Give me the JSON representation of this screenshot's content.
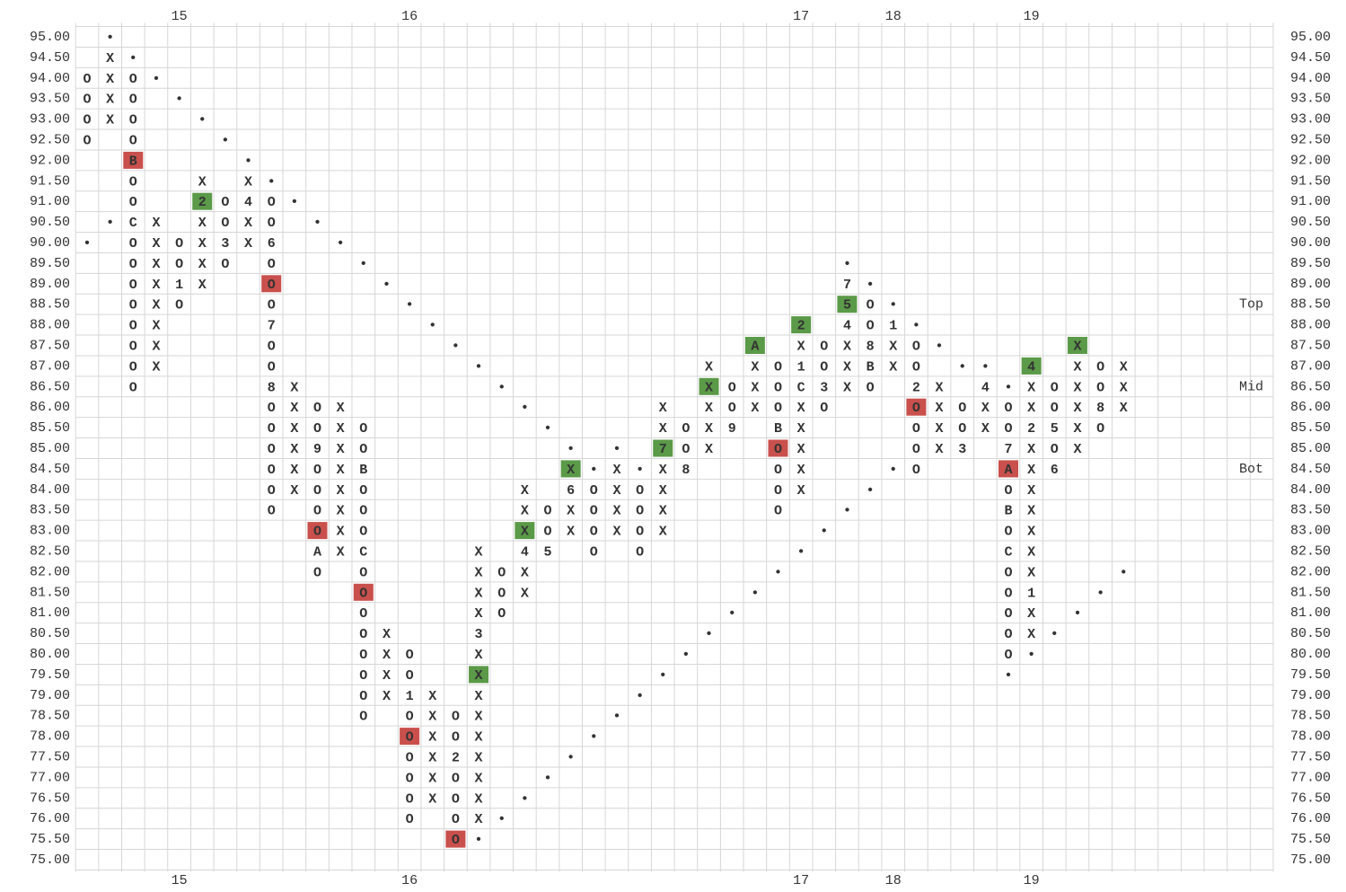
{
  "chart_data": {
    "type": "point_and_figure",
    "ylim": [
      75,
      95
    ],
    "yticks": [
      {
        "value": 95,
        "label": "95.00"
      },
      {
        "value": 94.5,
        "label": "94.50"
      },
      {
        "value": 94,
        "label": "94.00"
      },
      {
        "value": 93.5,
        "label": "93.50"
      },
      {
        "value": 93,
        "label": "93.00"
      },
      {
        "value": 92.5,
        "label": "92.50"
      },
      {
        "value": 92,
        "label": "92.00"
      },
      {
        "value": 91.5,
        "label": "91.50"
      },
      {
        "value": 91,
        "label": "91.00"
      },
      {
        "value": 90.5,
        "label": "90.50"
      },
      {
        "value": 90,
        "label": "90.00"
      },
      {
        "value": 89.5,
        "label": "89.50"
      },
      {
        "value": 89,
        "label": "89.00"
      },
      {
        "value": 88.5,
        "label": "88.50"
      },
      {
        "value": 88,
        "label": "88.00"
      },
      {
        "value": 87.5,
        "label": "87.50"
      },
      {
        "value": 87,
        "label": "87.00"
      },
      {
        "value": 86.5,
        "label": "86.50"
      },
      {
        "value": 86,
        "label": "86.00"
      },
      {
        "value": 85.5,
        "label": "85.50"
      },
      {
        "value": 85,
        "label": "85.00"
      },
      {
        "value": 84.5,
        "label": "84.50"
      },
      {
        "value": 84,
        "label": "84.00"
      },
      {
        "value": 83.5,
        "label": "83.50"
      },
      {
        "value": 83,
        "label": "83.00"
      },
      {
        "value": 82.5,
        "label": "82.50"
      },
      {
        "value": 82,
        "label": "82.00"
      },
      {
        "value": 81.5,
        "label": "81.50"
      },
      {
        "value": 81,
        "label": "81.00"
      },
      {
        "value": 80.5,
        "label": "80.50"
      },
      {
        "value": 80,
        "label": "80.00"
      },
      {
        "value": 79.5,
        "label": "79.50"
      },
      {
        "value": 79,
        "label": "79.00"
      },
      {
        "value": 78.5,
        "label": "78.50"
      },
      {
        "value": 78,
        "label": "78.00"
      },
      {
        "value": 77.5,
        "label": "77.50"
      },
      {
        "value": 77,
        "label": "77.00"
      },
      {
        "value": 76.5,
        "label": "76.50"
      },
      {
        "value": 76,
        "label": "76.00"
      },
      {
        "value": 75.5,
        "label": "75.50"
      },
      {
        "value": 75,
        "label": "75.00"
      }
    ],
    "column_labels": [
      {
        "text": "15",
        "column": 4
      },
      {
        "text": "16",
        "column": 14
      },
      {
        "text": "17",
        "column": 31
      },
      {
        "text": "18",
        "column": 35
      },
      {
        "text": "19",
        "column": 41
      }
    ],
    "level_labels": [
      {
        "text": "Top",
        "price": 88.5
      },
      {
        "text": "Mid",
        "price": 86.5
      },
      {
        "text": "Bot",
        "price": 84.5
      }
    ],
    "dot_color": "#b3504e",
    "rows": [
      {
        "1": "•"
      },
      {
        "1": "X",
        "2": "•"
      },
      {
        "0": "O",
        "1": "X",
        "2": "O",
        "3": "•"
      },
      {
        "0": "O",
        "1": "X",
        "2": "O",
        "4": "•"
      },
      {
        "0": "O",
        "1": "X",
        "2": "O",
        "5": "•"
      },
      {
        "0": "O",
        "2": "O",
        "6": "•"
      },
      {
        "2": {
          "text": "B",
          "box": "#c9504c"
        },
        "7": "•"
      },
      {
        "2": "O",
        "5": "X",
        "7": "X",
        "8": "•"
      },
      {
        "2": "O",
        "5": {
          "text": "2",
          "box": "#5b9a48"
        },
        "6": "O",
        "7": "4",
        "8": "O",
        "9": "•"
      },
      {
        "1": "•",
        "2": "C",
        "3": "X",
        "5": "X",
        "6": "O",
        "7": "X",
        "8": "O",
        "10": "•"
      },
      {
        "0": "•",
        "2": "O",
        "3": "X",
        "4": "O",
        "5": "X",
        "6": "3",
        "7": "X",
        "8": "6",
        "11": "•"
      },
      {
        "2": "O",
        "3": "X",
        "4": "O",
        "5": "X",
        "6": "O",
        "8": "O",
        "12": "•",
        "33": "•"
      },
      {
        "2": "O",
        "3": "X",
        "4": "1",
        "5": "X",
        "8": {
          "text": "O",
          "box": "#c9504c"
        },
        "13": "•",
        "33": "7",
        "34": "•"
      },
      {
        "2": "O",
        "3": "X",
        "4": "O",
        "8": "O",
        "14": "•",
        "33": {
          "text": "5",
          "box": "#5b9a48"
        },
        "34": "O",
        "35": "•"
      },
      {
        "2": "O",
        "3": "X",
        "8": "7",
        "15": "•",
        "31": {
          "text": "2",
          "box": "#5b9a48"
        },
        "33": "4",
        "34": "O",
        "35": "1",
        "36": "•"
      },
      {
        "2": "O",
        "3": "X",
        "8": "O",
        "16": "•",
        "29": {
          "text": "A",
          "box": "#5b9a48"
        },
        "31": "X",
        "32": "O",
        "33": "X",
        "34": "8",
        "35": "X",
        "36": "O",
        "37": "•",
        "43": {
          "text": "X",
          "box": "#5b9a48"
        }
      },
      {
        "2": "O",
        "3": "X",
        "8": "O",
        "17": "•",
        "27": "X",
        "29": "X",
        "30": "O",
        "31": "1",
        "32": "O",
        "33": "X",
        "34": "B",
        "35": "X",
        "36": "O",
        "38": "•",
        "39": "•",
        "41": {
          "text": "4",
          "box": "#5b9a48"
        },
        "43": "X",
        "44": "O",
        "45": "X"
      },
      {
        "2": "O",
        "8": "8",
        "9": "X",
        "18": "•",
        "27": {
          "text": "X",
          "box": "#5b9a48"
        },
        "28": "O",
        "29": "X",
        "30": "O",
        "31": "C",
        "32": "3",
        "33": "X",
        "34": "O",
        "36": "2",
        "37": "X",
        "39": "4",
        "40": "•",
        "41": "X",
        "42": "O",
        "43": "X",
        "44": "O",
        "45": "X"
      },
      {
        "8": "O",
        "9": "X",
        "10": "O",
        "11": "X",
        "19": "•",
        "25": "X",
        "27": "X",
        "28": "O",
        "29": "X",
        "30": "O",
        "31": "X",
        "32": "O",
        "36": {
          "text": "O",
          "box": "#c9504c"
        },
        "37": "X",
        "38": "O",
        "39": "X",
        "40": "O",
        "41": "X",
        "42": "O",
        "43": "X",
        "44": "8",
        "45": "X"
      },
      {
        "8": "O",
        "9": "X",
        "10": "O",
        "11": "X",
        "12": "O",
        "20": "•",
        "25": "X",
        "26": "O",
        "27": "X",
        "28": "9",
        "30": "B",
        "31": "X",
        "36": "O",
        "37": "X",
        "38": "O",
        "39": "X",
        "40": "O",
        "41": "2",
        "42": "5",
        "43": "X",
        "44": "O"
      },
      {
        "8": "O",
        "9": "X",
        "10": "9",
        "11": "X",
        "12": "O",
        "21": "•",
        "23": "•",
        "25": {
          "text": "7",
          "box": "#5b9a48"
        },
        "26": "O",
        "27": "X",
        "30": {
          "text": "O",
          "box": "#c9504c"
        },
        "31": "X",
        "36": "O",
        "37": "X",
        "38": "3",
        "40": "7",
        "41": "X",
        "42": "O",
        "43": "X"
      },
      {
        "8": "O",
        "9": "X",
        "10": "O",
        "11": "X",
        "12": "B",
        "21": {
          "text": "X",
          "box": "#5b9a48"
        },
        "22": "•",
        "23": "X",
        "24": "•",
        "25": "X",
        "26": "8",
        "30": "O",
        "31": "X",
        "35": "•",
        "36": "O",
        "40": {
          "text": "A",
          "box": "#c9504c"
        },
        "41": "X",
        "42": "6"
      },
      {
        "8": "O",
        "9": "X",
        "10": "O",
        "11": "X",
        "12": "O",
        "19": "X",
        "21": "6",
        "22": "O",
        "23": "X",
        "24": "O",
        "25": "X",
        "30": "O",
        "31": "X",
        "34": "•",
        "40": "O",
        "41": "X"
      },
      {
        "8": "O",
        "10": "O",
        "11": "X",
        "12": "O",
        "19": "X",
        "20": "O",
        "21": "X",
        "22": "O",
        "23": "X",
        "24": "O",
        "25": "X",
        "30": "O",
        "33": "•",
        "40": "B",
        "41": "X"
      },
      {
        "10": {
          "text": "O",
          "box": "#c9504c"
        },
        "11": "X",
        "12": "O",
        "19": {
          "text": "X",
          "box": "#5b9a48"
        },
        "20": "O",
        "21": "X",
        "22": "O",
        "23": "X",
        "24": "O",
        "25": "X",
        "32": "•",
        "40": "O",
        "41": "X"
      },
      {
        "10": "A",
        "11": "X",
        "12": "C",
        "17": "X",
        "19": "4",
        "20": "5",
        "22": "O",
        "24": "O",
        "31": "•",
        "40": "C",
        "41": "X"
      },
      {
        "10": "O",
        "12": "O",
        "17": "X",
        "18": "O",
        "19": "X",
        "30": "•",
        "40": "O",
        "41": "X",
        "45": "•"
      },
      {
        "12": {
          "text": "O",
          "box": "#c9504c"
        },
        "17": "X",
        "18": "O",
        "19": "X",
        "29": "•",
        "40": "O",
        "41": "1",
        "44": "•"
      },
      {
        "12": "O",
        "17": "X",
        "18": "O",
        "28": "•",
        "40": "O",
        "41": "X",
        "43": "•"
      },
      {
        "12": "O",
        "13": "X",
        "17": "3",
        "27": "•",
        "40": "O",
        "41": "X",
        "42": "•"
      },
      {
        "12": "O",
        "13": "X",
        "14": "O",
        "17": "X",
        "26": "•",
        "40": "O",
        "41": "•"
      },
      {
        "12": "O",
        "13": "X",
        "14": "O",
        "17": {
          "text": "X",
          "box": "#5b9a48"
        },
        "25": "•",
        "40": "•"
      },
      {
        "12": "O",
        "13": "X",
        "14": "1",
        "15": "X",
        "17": "X",
        "24": "•"
      },
      {
        "12": "O",
        "14": "O",
        "15": "X",
        "16": "O",
        "17": "X",
        "23": "•"
      },
      {
        "14": {
          "text": "O",
          "box": "#c9504c"
        },
        "15": "X",
        "16": "O",
        "17": "X",
        "22": "•"
      },
      {
        "14": "O",
        "15": "X",
        "16": "2",
        "17": "X",
        "21": "•"
      },
      {
        "14": "O",
        "15": "X",
        "16": "O",
        "17": "X",
        "20": "•"
      },
      {
        "14": "O",
        "15": "X",
        "16": "O",
        "17": "X",
        "19": "•"
      },
      {
        "14": "O",
        "16": "O",
        "17": "X",
        "18": "•"
      },
      {
        "16": {
          "text": "O",
          "box": "#c9504c"
        },
        "17": "•"
      },
      {}
    ]
  }
}
